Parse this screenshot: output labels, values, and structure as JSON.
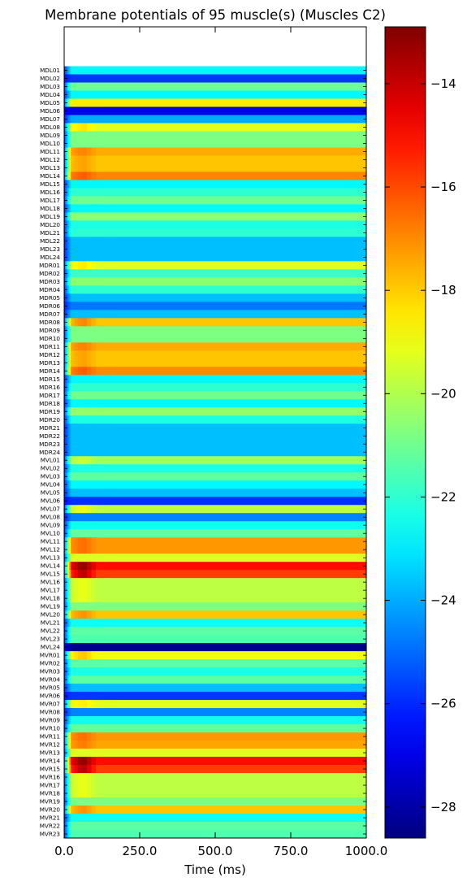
{
  "chart_data": {
    "type": "heatmap",
    "title": "Membrane potentials of 95 muscle(s) (Muscles C2)",
    "xlabel": "Time (ms)",
    "ylabel": "",
    "xlim": [
      0,
      1000
    ],
    "x_ticks": [
      "0.0",
      "250.0",
      "500.0",
      "750.0",
      "1000.0"
    ],
    "colorbar": {
      "colormap": "jet",
      "range": [
        -28.6,
        -12.9
      ],
      "ticks": [
        -14,
        -16,
        -18,
        -20,
        -22,
        -24,
        -26,
        -28
      ],
      "tick_labels": [
        "−14",
        "−16",
        "−18",
        "−20",
        "−22",
        "−24",
        "−26",
        "−28"
      ]
    },
    "time_onset": {
      "start_value": -26.5,
      "settle_ms": 25,
      "transient_ms": [
        15,
        110
      ]
    },
    "rows": [
      {
        "label": "MDL01",
        "value": -22.8,
        "peak": -22.8
      },
      {
        "label": "MDL02",
        "value": -25.8,
        "peak": -25.8
      },
      {
        "label": "MDL03",
        "value": -21.0,
        "peak": -21.0
      },
      {
        "label": "MDL04",
        "value": -22.8,
        "peak": -22.8
      },
      {
        "label": "MDL05",
        "value": -18.5,
        "peak": -18.5
      },
      {
        "label": "MDL06",
        "value": -27.0,
        "peak": -27.0
      },
      {
        "label": "MDL07",
        "value": -24.0,
        "peak": -24.0
      },
      {
        "label": "MDL08",
        "value": -19.2,
        "peak": -18.3
      },
      {
        "label": "MDL09",
        "value": -20.8,
        "peak": -20.8
      },
      {
        "label": "MDL10",
        "value": -20.8,
        "peak": -20.8
      },
      {
        "label": "MDL11",
        "value": -17.5,
        "peak": -16.8
      },
      {
        "label": "MDL12",
        "value": -17.9,
        "peak": -17.3
      },
      {
        "label": "MDL13",
        "value": -17.9,
        "peak": -17.3
      },
      {
        "label": "MDL14",
        "value": -16.9,
        "peak": -16.2
      },
      {
        "label": "MDL15",
        "value": -22.8,
        "peak": -22.8
      },
      {
        "label": "MDL16",
        "value": -22.0,
        "peak": -22.0
      },
      {
        "label": "MDL17",
        "value": -21.0,
        "peak": -21.0
      },
      {
        "label": "MDL18",
        "value": -22.8,
        "peak": -22.8
      },
      {
        "label": "MDL19",
        "value": -20.5,
        "peak": -20.5
      },
      {
        "label": "MDL20",
        "value": -22.3,
        "peak": -22.3
      },
      {
        "label": "MDL21",
        "value": -22.0,
        "peak": -22.0
      },
      {
        "label": "MDL22",
        "value": -23.7,
        "peak": -23.7
      },
      {
        "label": "MDL23",
        "value": -23.7,
        "peak": -23.7
      },
      {
        "label": "MDL24",
        "value": -23.7,
        "peak": -23.7
      },
      {
        "label": "MDR01",
        "value": -19.3,
        "peak": -18.4
      },
      {
        "label": "MDR02",
        "value": -21.8,
        "peak": -21.8
      },
      {
        "label": "MDR03",
        "value": -20.6,
        "peak": -20.6
      },
      {
        "label": "MDR04",
        "value": -22.0,
        "peak": -22.0
      },
      {
        "label": "MDR05",
        "value": -23.7,
        "peak": -23.7
      },
      {
        "label": "MDR06",
        "value": -24.8,
        "peak": -24.8
      },
      {
        "label": "MDR07",
        "value": -23.7,
        "peak": -23.7
      },
      {
        "label": "MDR08",
        "value": -17.9,
        "peak": -16.8
      },
      {
        "label": "MDR09",
        "value": -20.8,
        "peak": -20.8
      },
      {
        "label": "MDR10",
        "value": -20.8,
        "peak": -20.8
      },
      {
        "label": "MDR11",
        "value": -17.5,
        "peak": -16.8
      },
      {
        "label": "MDR12",
        "value": -17.9,
        "peak": -17.3
      },
      {
        "label": "MDR13",
        "value": -17.9,
        "peak": -17.3
      },
      {
        "label": "MDR14",
        "value": -17.0,
        "peak": -16.2
      },
      {
        "label": "MDR15",
        "value": -22.8,
        "peak": -22.8
      },
      {
        "label": "MDR16",
        "value": -22.0,
        "peak": -22.0
      },
      {
        "label": "MDR17",
        "value": -21.0,
        "peak": -21.0
      },
      {
        "label": "MDR18",
        "value": -22.8,
        "peak": -22.8
      },
      {
        "label": "MDR19",
        "value": -20.5,
        "peak": -20.5
      },
      {
        "label": "MDR20",
        "value": -22.3,
        "peak": -22.3
      },
      {
        "label": "MDR21",
        "value": -23.7,
        "peak": -23.7
      },
      {
        "label": "MDR22",
        "value": -23.7,
        "peak": -23.7
      },
      {
        "label": "MDR23",
        "value": -23.7,
        "peak": -23.7
      },
      {
        "label": "MDR24",
        "value": -23.7,
        "peak": -23.7
      },
      {
        "label": "MVL01",
        "value": -20.2,
        "peak": -19.5
      },
      {
        "label": "MVL02",
        "value": -22.3,
        "peak": -22.3
      },
      {
        "label": "MVL03",
        "value": -21.2,
        "peak": -21.2
      },
      {
        "label": "MVL04",
        "value": -22.8,
        "peak": -22.8
      },
      {
        "label": "MVL05",
        "value": -23.7,
        "peak": -23.7
      },
      {
        "label": "MVL06",
        "value": -25.9,
        "peak": -25.9
      },
      {
        "label": "MVL07",
        "value": -19.8,
        "peak": -19.0
      },
      {
        "label": "MVL08",
        "value": -24.6,
        "peak": -24.6
      },
      {
        "label": "MVL09",
        "value": -22.5,
        "peak": -22.5
      },
      {
        "label": "MVL10",
        "value": -21.2,
        "peak": -21.2
      },
      {
        "label": "MVL11",
        "value": -17.2,
        "peak": -16.5
      },
      {
        "label": "MVL12",
        "value": -17.2,
        "peak": -16.5
      },
      {
        "label": "MVL13",
        "value": -19.3,
        "peak": -19.3
      },
      {
        "label": "MVL14",
        "value": -15.0,
        "peak": -13.0
      },
      {
        "label": "MVL15",
        "value": -15.8,
        "peak": -13.6
      },
      {
        "label": "MVL16",
        "value": -19.8,
        "peak": -19.0
      },
      {
        "label": "MVL17",
        "value": -19.8,
        "peak": -19.0
      },
      {
        "label": "MVL18",
        "value": -19.8,
        "peak": -19.0
      },
      {
        "label": "MVL19",
        "value": -20.8,
        "peak": -20.8
      },
      {
        "label": "MVL20",
        "value": -17.9,
        "peak": -17.0
      },
      {
        "label": "MVL21",
        "value": -22.5,
        "peak": -22.5
      },
      {
        "label": "MVL22",
        "value": -21.3,
        "peak": -21.3
      },
      {
        "label": "MVL23",
        "value": -21.5,
        "peak": -21.5
      },
      {
        "label": "MVL24",
        "value": -28.4,
        "peak": -28.4
      },
      {
        "label": "MVR01",
        "value": -19.0,
        "peak": -17.8
      },
      {
        "label": "MVR02",
        "value": -21.3,
        "peak": -21.3
      },
      {
        "label": "MVR03",
        "value": -22.3,
        "peak": -22.3
      },
      {
        "label": "MVR04",
        "value": -21.3,
        "peak": -21.3
      },
      {
        "label": "MVR05",
        "value": -23.7,
        "peak": -23.7
      },
      {
        "label": "MVR06",
        "value": -25.8,
        "peak": -25.8
      },
      {
        "label": "MVR07",
        "value": -19.2,
        "peak": -18.5
      },
      {
        "label": "MVR08",
        "value": -24.6,
        "peak": -24.6
      },
      {
        "label": "MVR09",
        "value": -22.5,
        "peak": -22.5
      },
      {
        "label": "MVR10",
        "value": -21.2,
        "peak": -21.2
      },
      {
        "label": "MVR11",
        "value": -17.2,
        "peak": -16.5
      },
      {
        "label": "MVR12",
        "value": -17.4,
        "peak": -16.7
      },
      {
        "label": "MVR13",
        "value": -19.3,
        "peak": -19.3
      },
      {
        "label": "MVR14",
        "value": -15.0,
        "peak": -13.0
      },
      {
        "label": "MVR15",
        "value": -15.8,
        "peak": -13.6
      },
      {
        "label": "MVR16",
        "value": -19.8,
        "peak": -19.0
      },
      {
        "label": "MVR17",
        "value": -19.8,
        "peak": -19.0
      },
      {
        "label": "MVR18",
        "value": -19.8,
        "peak": -19.0
      },
      {
        "label": "MVR19",
        "value": -20.8,
        "peak": -20.8
      },
      {
        "label": "MVR20",
        "value": -17.9,
        "peak": -17.0
      },
      {
        "label": "MVR21",
        "value": -22.5,
        "peak": -22.5
      },
      {
        "label": "MVR22",
        "value": -21.3,
        "peak": -21.3
      },
      {
        "label": "MVR23",
        "value": -21.5,
        "peak": -21.5
      }
    ]
  }
}
